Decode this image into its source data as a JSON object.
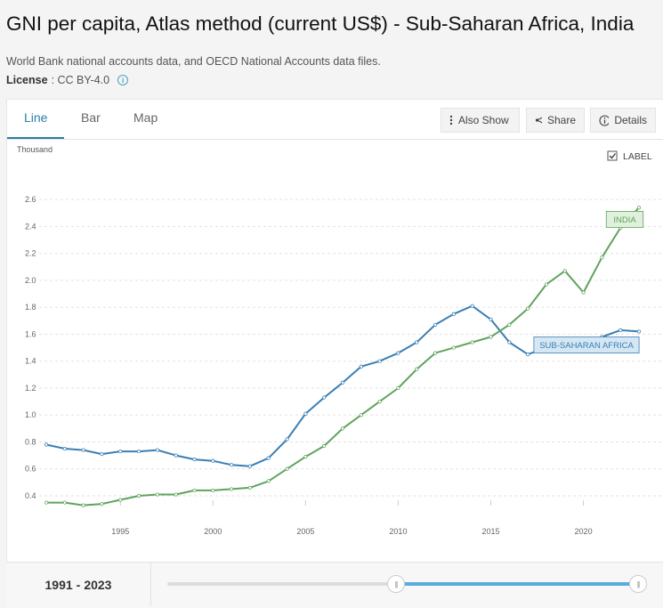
{
  "header": {
    "title": "GNI per capita, Atlas method (current US$) - Sub-Saharan Africa, India",
    "source": "World Bank national accounts data, and OECD National Accounts data files.",
    "license_label": "License",
    "license_value": ": CC BY-4.0",
    "info_icon": "i"
  },
  "tabs": [
    {
      "label": "Line",
      "active": true
    },
    {
      "label": "Bar",
      "active": false
    },
    {
      "label": "Map",
      "active": false
    }
  ],
  "toolbar": {
    "also_show": "Also Show",
    "share": "Share",
    "details": "Details"
  },
  "label_toggle": {
    "label": "LABEL",
    "checked": true
  },
  "colors": {
    "accent": "#2a7dab",
    "india": "#5fa35e",
    "ssa": "#3a7fb4"
  },
  "footer": {
    "range_start": "1991",
    "range_sep": "-",
    "range_end": "2023"
  },
  "chart_data": {
    "type": "line",
    "ylabel": "Thousand",
    "ylim": [
      0.3,
      2.65
    ],
    "yticks": [
      0.4,
      0.6,
      0.8,
      1.0,
      1.2,
      1.4,
      1.6,
      1.8,
      2.0,
      2.2,
      2.4,
      2.6
    ],
    "ytick_labels": [
      "0.4",
      "0.6",
      "0.8",
      "1.0",
      "1.2",
      "1.4",
      "1.6",
      "1.8",
      "2.0",
      "2.2",
      "2.4",
      "2.6"
    ],
    "xlim": [
      1991,
      2023
    ],
    "xticks": [
      1995,
      2000,
      2005,
      2010,
      2015,
      2020
    ],
    "grid": true,
    "x": [
      1991,
      1992,
      1993,
      1994,
      1995,
      1996,
      1997,
      1998,
      1999,
      2000,
      2001,
      2002,
      2003,
      2004,
      2005,
      2006,
      2007,
      2008,
      2009,
      2010,
      2011,
      2012,
      2013,
      2014,
      2015,
      2016,
      2017,
      2018,
      2019,
      2020,
      2021,
      2022,
      2023
    ],
    "series": [
      {
        "name": "INDIA",
        "color": "#5fa35e",
        "label_box": "#e1f0dc",
        "values": [
          0.35,
          0.35,
          0.33,
          0.34,
          0.37,
          0.4,
          0.41,
          0.41,
          0.44,
          0.44,
          0.45,
          0.46,
          0.51,
          0.6,
          0.69,
          0.77,
          0.9,
          1.0,
          1.1,
          1.2,
          1.34,
          1.46,
          1.5,
          1.54,
          1.58,
          1.67,
          1.79,
          1.97,
          2.07,
          1.91,
          2.17,
          2.39,
          2.54
        ]
      },
      {
        "name": "SUB-SAHARAN AFRICA",
        "color": "#3a7fb4",
        "label_box": "#d5e7f3",
        "values": [
          0.78,
          0.75,
          0.74,
          0.71,
          0.73,
          0.73,
          0.74,
          0.7,
          0.67,
          0.66,
          0.63,
          0.62,
          0.68,
          0.82,
          1.01,
          1.13,
          1.24,
          1.36,
          1.4,
          1.46,
          1.54,
          1.67,
          1.75,
          1.81,
          1.71,
          1.54,
          1.45,
          1.5,
          1.54,
          1.53,
          1.58,
          1.63,
          1.62
        ]
      }
    ]
  }
}
